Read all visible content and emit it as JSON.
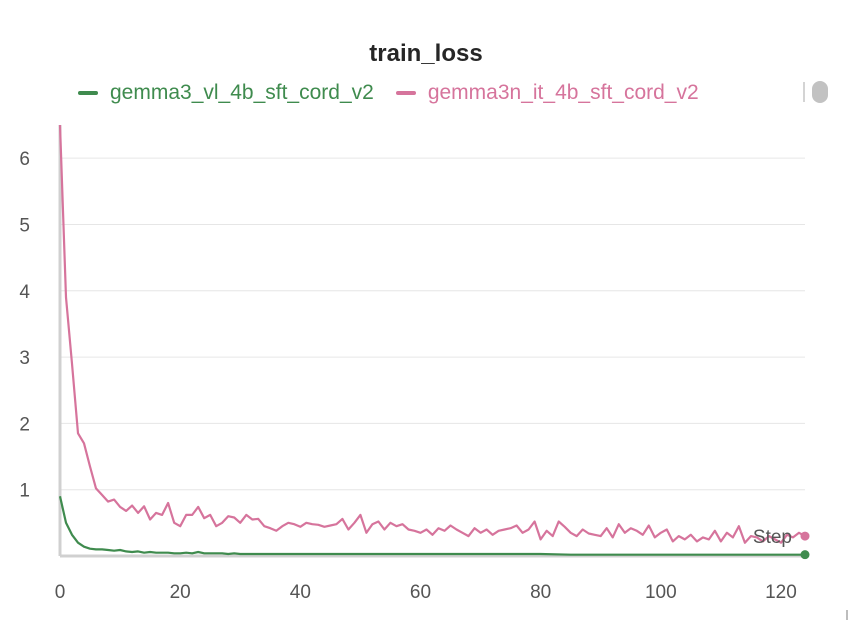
{
  "chart_data": {
    "type": "line",
    "title": "train_loss",
    "xlabel": "Step",
    "ylabel": "",
    "xlim": [
      0,
      124
    ],
    "ylim": [
      0,
      6.5
    ],
    "x_ticks": [
      0,
      20,
      40,
      60,
      80,
      100,
      120
    ],
    "y_ticks": [
      1,
      2,
      3,
      4,
      5,
      6
    ],
    "grid": true,
    "legend_position": "top",
    "series": [
      {
        "name": "gemma3_vl_4b_sft_cord_v2",
        "color": "#3f8b4e",
        "x": [
          0,
          1,
          2,
          3,
          4,
          5,
          6,
          7,
          8,
          9,
          10,
          11,
          12,
          13,
          14,
          15,
          16,
          17,
          18,
          19,
          20,
          21,
          22,
          23,
          24,
          25,
          26,
          27,
          28,
          29,
          30,
          35,
          40,
          45,
          50,
          55,
          60,
          65,
          70,
          75,
          80,
          85,
          90,
          95,
          100,
          105,
          110,
          115,
          120,
          124
        ],
        "y": [
          0.9,
          0.5,
          0.32,
          0.2,
          0.14,
          0.11,
          0.1,
          0.1,
          0.09,
          0.08,
          0.09,
          0.07,
          0.06,
          0.07,
          0.05,
          0.06,
          0.05,
          0.05,
          0.05,
          0.04,
          0.04,
          0.05,
          0.04,
          0.06,
          0.04,
          0.04,
          0.04,
          0.04,
          0.03,
          0.04,
          0.03,
          0.03,
          0.03,
          0.03,
          0.03,
          0.03,
          0.03,
          0.03,
          0.03,
          0.03,
          0.03,
          0.02,
          0.02,
          0.02,
          0.02,
          0.02,
          0.02,
          0.02,
          0.02,
          0.02
        ]
      },
      {
        "name": "gemma3n_it_4b_sft_cord_v2",
        "color": "#d6749c",
        "x": [
          0,
          1,
          2,
          3,
          4,
          5,
          6,
          7,
          8,
          9,
          10,
          11,
          12,
          13,
          14,
          15,
          16,
          17,
          18,
          19,
          20,
          21,
          22,
          23,
          24,
          25,
          26,
          27,
          28,
          29,
          30,
          31,
          32,
          33,
          34,
          35,
          36,
          37,
          38,
          39,
          40,
          41,
          42,
          43,
          44,
          45,
          46,
          47,
          48,
          49,
          50,
          51,
          52,
          53,
          54,
          55,
          56,
          57,
          58,
          59,
          60,
          61,
          62,
          63,
          64,
          65,
          66,
          67,
          68,
          69,
          70,
          71,
          72,
          73,
          74,
          75,
          76,
          77,
          78,
          79,
          80,
          81,
          82,
          83,
          84,
          85,
          86,
          87,
          88,
          89,
          90,
          91,
          92,
          93,
          94,
          95,
          96,
          97,
          98,
          99,
          100,
          101,
          102,
          103,
          104,
          105,
          106,
          107,
          108,
          109,
          110,
          111,
          112,
          113,
          114,
          115,
          116,
          117,
          118,
          119,
          120,
          121,
          122,
          123,
          124
        ],
        "y": [
          6.5,
          3.9,
          2.9,
          1.85,
          1.7,
          1.35,
          1.02,
          0.92,
          0.82,
          0.85,
          0.74,
          0.68,
          0.76,
          0.65,
          0.75,
          0.55,
          0.65,
          0.62,
          0.8,
          0.5,
          0.45,
          0.62,
          0.62,
          0.74,
          0.57,
          0.62,
          0.45,
          0.5,
          0.6,
          0.58,
          0.5,
          0.62,
          0.55,
          0.56,
          0.45,
          0.42,
          0.38,
          0.45,
          0.5,
          0.48,
          0.44,
          0.5,
          0.48,
          0.47,
          0.44,
          0.46,
          0.48,
          0.56,
          0.4,
          0.5,
          0.62,
          0.35,
          0.48,
          0.52,
          0.4,
          0.5,
          0.45,
          0.48,
          0.4,
          0.38,
          0.35,
          0.4,
          0.32,
          0.42,
          0.38,
          0.46,
          0.4,
          0.35,
          0.3,
          0.42,
          0.35,
          0.4,
          0.32,
          0.38,
          0.4,
          0.42,
          0.46,
          0.35,
          0.4,
          0.52,
          0.25,
          0.38,
          0.3,
          0.52,
          0.44,
          0.35,
          0.3,
          0.4,
          0.34,
          0.32,
          0.3,
          0.42,
          0.28,
          0.48,
          0.35,
          0.42,
          0.38,
          0.32,
          0.46,
          0.28,
          0.35,
          0.4,
          0.22,
          0.3,
          0.25,
          0.32,
          0.22,
          0.28,
          0.25,
          0.38,
          0.22,
          0.35,
          0.28,
          0.45,
          0.2,
          0.3,
          0.28,
          0.22,
          0.3,
          0.25,
          0.2,
          0.32,
          0.28,
          0.35,
          0.3
        ]
      }
    ]
  }
}
